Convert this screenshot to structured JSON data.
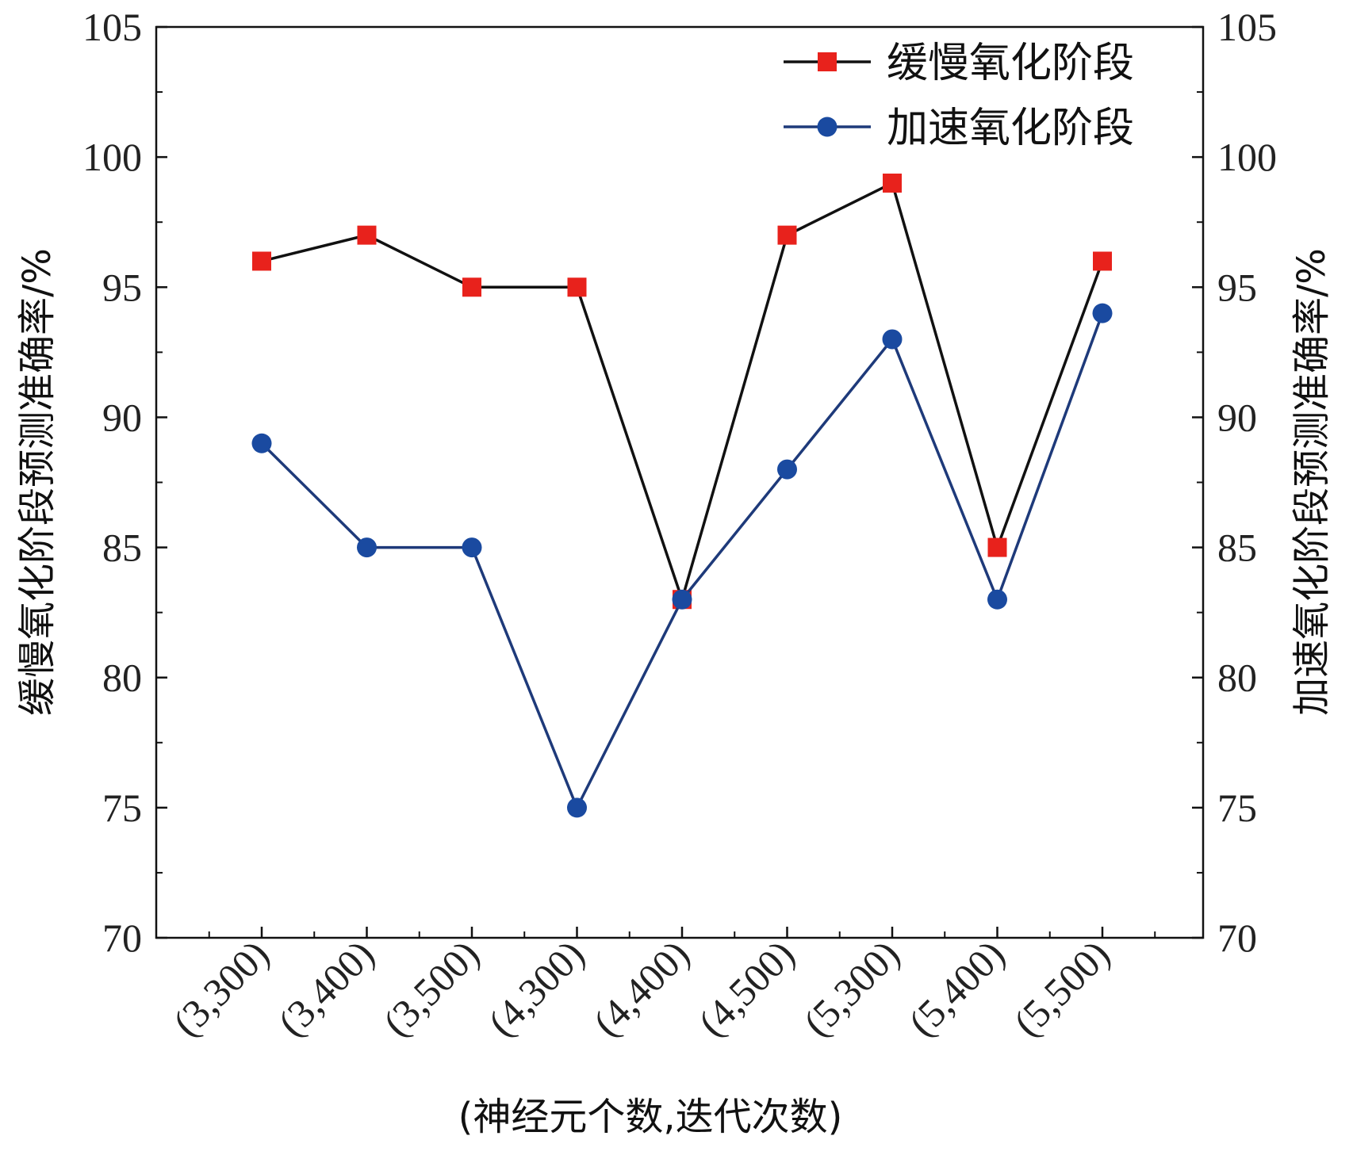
{
  "chart_data": {
    "type": "line",
    "title": "",
    "categories": [
      "(3,300)",
      "(3,400)",
      "(3,500)",
      "(4,300)",
      "(4,400)",
      "(4,500)",
      "(5,300)",
      "(5,400)",
      "(5,500)"
    ],
    "xlabel": "(神经元个数,迭代次数)",
    "ylabel_left": "缓慢氧化阶段预测准确率/%",
    "ylabel_right": "加速氧化阶段预测准确率/%",
    "ylim": [
      70,
      105
    ],
    "yticks": [
      70,
      75,
      80,
      85,
      90,
      95,
      100,
      105
    ],
    "grid": false,
    "legend_position": "top-right",
    "series": [
      {
        "name": "缓慢氧化阶段",
        "values": [
          96,
          97,
          95,
          95,
          83,
          97,
          99,
          85,
          96
        ],
        "line_color": "#111111",
        "marker": "square",
        "marker_color": "#e8221c"
      },
      {
        "name": "加速氧化阶段",
        "values": [
          89,
          85,
          85,
          75,
          83,
          88,
          93,
          83,
          94
        ],
        "line_color": "#1e3a7a",
        "marker": "circle",
        "marker_color": "#1a4aa0"
      }
    ]
  }
}
